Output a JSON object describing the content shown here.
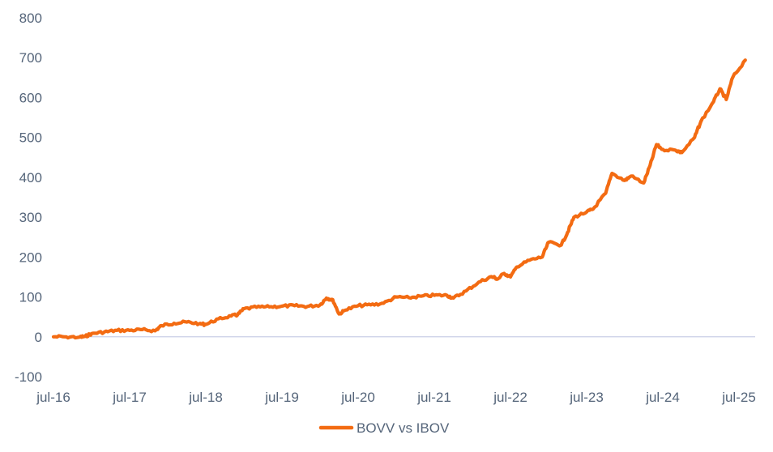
{
  "chart_data": {
    "type": "line",
    "title": "",
    "xlabel": "",
    "ylabel": "",
    "ylim": [
      -100,
      800
    ],
    "yticks": [
      -100,
      0,
      100,
      200,
      300,
      400,
      500,
      600,
      700,
      800
    ],
    "ytick_labels": [
      "-100",
      "0",
      "100",
      "200",
      "300",
      "400",
      "500",
      "600",
      "700",
      "800"
    ],
    "xticks": [
      "2016-07",
      "2017-07",
      "2018-07",
      "2019-07",
      "2020-07",
      "2021-07",
      "2022-07",
      "2023-07",
      "2024-07",
      "2025-07"
    ],
    "xtick_labels": [
      "jul-16",
      "jul-17",
      "jul-18",
      "jul-19",
      "jul-20",
      "jul-21",
      "jul-22",
      "jul-23",
      "jul-24",
      "jul-25"
    ],
    "grid": false,
    "legend": "bottom",
    "colors": {
      "series": "#f36b12",
      "zero_line": "#c9cfe6",
      "text": "#55657a"
    },
    "series": [
      {
        "name": "BOVV vs IBOV",
        "points": [
          [
            "2016-07",
            0
          ],
          [
            "2016-09",
            0
          ],
          [
            "2016-11",
            -1
          ],
          [
            "2016-12",
            1
          ],
          [
            "2017-01",
            8
          ],
          [
            "2017-03",
            12
          ],
          [
            "2017-05",
            16
          ],
          [
            "2017-07",
            16
          ],
          [
            "2017-09",
            18
          ],
          [
            "2017-11",
            15
          ],
          [
            "2017-12",
            28
          ],
          [
            "2018-02",
            34
          ],
          [
            "2018-04",
            37
          ],
          [
            "2018-06",
            33
          ],
          [
            "2018-07",
            31
          ],
          [
            "2018-09",
            45
          ],
          [
            "2018-11",
            52
          ],
          [
            "2018-12",
            55
          ],
          [
            "2019-01",
            70
          ],
          [
            "2019-03",
            74
          ],
          [
            "2019-05",
            75
          ],
          [
            "2019-07",
            77
          ],
          [
            "2019-09",
            78
          ],
          [
            "2019-11",
            76
          ],
          [
            "2020-01",
            80
          ],
          [
            "2020-02",
            97
          ],
          [
            "2020-03",
            93
          ],
          [
            "2020-04",
            57
          ],
          [
            "2020-05",
            67
          ],
          [
            "2020-07",
            78
          ],
          [
            "2020-09",
            80
          ],
          [
            "2020-11",
            84
          ],
          [
            "2021-01",
            100
          ],
          [
            "2021-03",
            98
          ],
          [
            "2021-05",
            102
          ],
          [
            "2021-07",
            104
          ],
          [
            "2021-09",
            104
          ],
          [
            "2021-10",
            97
          ],
          [
            "2021-12",
            115
          ],
          [
            "2022-02",
            137
          ],
          [
            "2022-04",
            151
          ],
          [
            "2022-05",
            145
          ],
          [
            "2022-06",
            159
          ],
          [
            "2022-07",
            150
          ],
          [
            "2022-08",
            175
          ],
          [
            "2022-10",
            192
          ],
          [
            "2022-12",
            200
          ],
          [
            "2023-01",
            237
          ],
          [
            "2023-03",
            230
          ],
          [
            "2023-04",
            262
          ],
          [
            "2023-05",
            300
          ],
          [
            "2023-07",
            313
          ],
          [
            "2023-08",
            320
          ],
          [
            "2023-10",
            360
          ],
          [
            "2023-11",
            410
          ],
          [
            "2024-01",
            392
          ],
          [
            "2024-02",
            403
          ],
          [
            "2024-04",
            386
          ],
          [
            "2024-05",
            430
          ],
          [
            "2024-06",
            482
          ],
          [
            "2024-07",
            470
          ],
          [
            "2024-09",
            468
          ],
          [
            "2024-10",
            462
          ],
          [
            "2024-12",
            500
          ],
          [
            "2025-01",
            540
          ],
          [
            "2025-03",
            590
          ],
          [
            "2025-04",
            622
          ],
          [
            "2025-05",
            595
          ],
          [
            "2025-06",
            650
          ],
          [
            "2025-08",
            694
          ]
        ]
      }
    ]
  }
}
